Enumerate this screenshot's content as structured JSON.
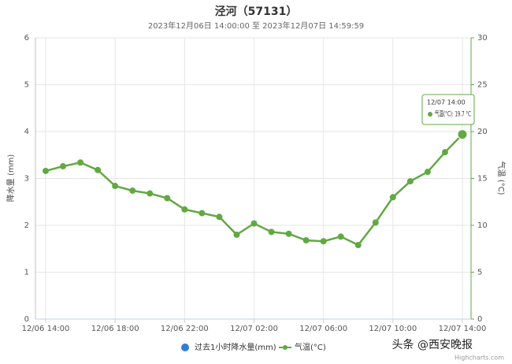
{
  "chart_data": {
    "type": "line",
    "title": "泾河（57131）",
    "subtitle": "2023年12月06日 14:00:00 至 2023年12月07日 14:59:59",
    "y_label": "降水量 (mm)",
    "y2_label": "气温 (°C)",
    "categories": [
      "12/06 14:00",
      null,
      null,
      null,
      "12/06 18:00",
      null,
      null,
      null,
      "12/06 22:00",
      null,
      null,
      null,
      "12/07 02:00",
      null,
      null,
      null,
      "12/07 06:00",
      null,
      null,
      null,
      "12/07 10:00",
      null,
      null,
      null,
      "12/07 14:00"
    ],
    "ylim": [
      0,
      6
    ],
    "yticks": [
      0,
      1,
      2,
      3,
      4,
      5,
      6
    ],
    "y2lim": [
      0,
      30
    ],
    "y2ticks": [
      0,
      5,
      10,
      15,
      20,
      25,
      30
    ],
    "grid": true,
    "series": [
      {
        "name": "过去1小时降水量(mm)",
        "color": "#2f7ed8",
        "values": [
          null,
          null,
          null,
          null,
          null,
          null,
          null,
          null,
          null,
          null,
          null,
          null,
          null,
          null,
          null,
          null,
          null,
          null,
          null,
          null,
          null,
          null,
          null,
          null,
          null
        ]
      },
      {
        "name": "气温(°C)",
        "color": "#62a843",
        "axis": "y2",
        "values": [
          15.8,
          16.3,
          16.7,
          15.9,
          14.2,
          13.7,
          13.4,
          12.9,
          11.7,
          11.3,
          10.9,
          9.0,
          10.2,
          9.3,
          9.1,
          8.4,
          8.3,
          8.8,
          7.9,
          10.3,
          13.0,
          14.7,
          15.7,
          17.8,
          19.7
        ]
      }
    ],
    "tooltip": {
      "x": "12/07 14:00",
      "text": "气温(°C): 19.7 °C"
    },
    "credits": "Highcharts.com",
    "watermark": "头条 @西安晚报"
  }
}
